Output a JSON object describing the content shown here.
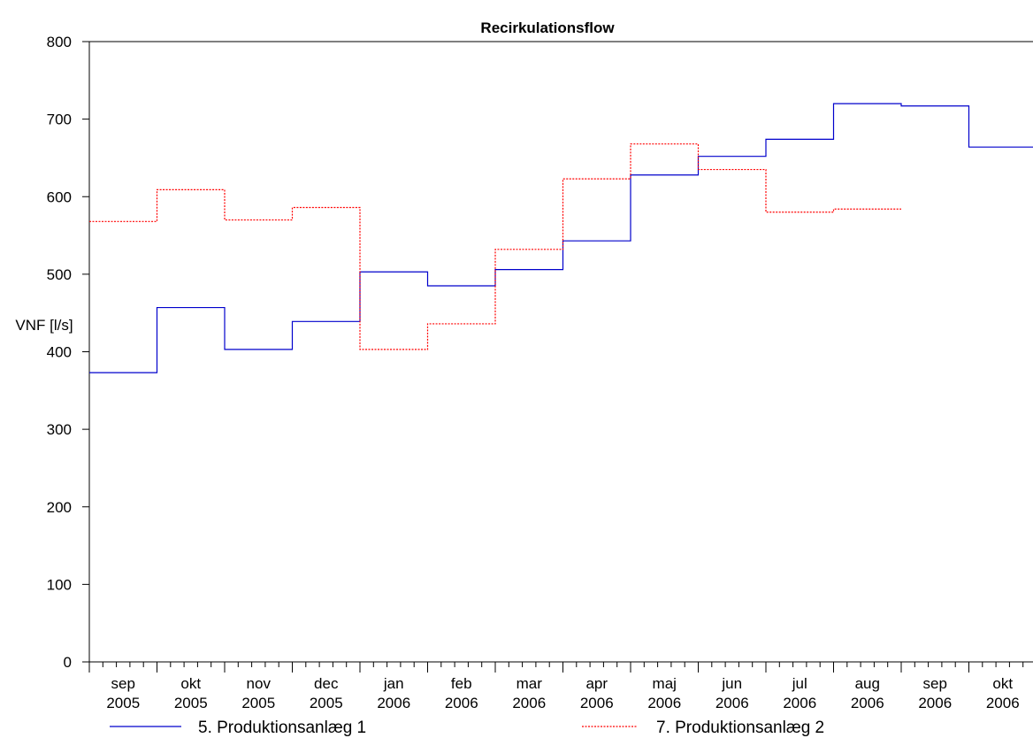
{
  "chart_data": {
    "type": "line",
    "step": true,
    "title": "Recirkulationsflow",
    "ylabel": "VNF [l/s]",
    "xlabel": "",
    "ylim": [
      0,
      800
    ],
    "yticks": [
      0,
      100,
      200,
      300,
      400,
      500,
      600,
      700,
      800
    ],
    "categories": [
      {
        "month": "sep",
        "year": "2005"
      },
      {
        "month": "okt",
        "year": "2005"
      },
      {
        "month": "nov",
        "year": "2005"
      },
      {
        "month": "dec",
        "year": "2005"
      },
      {
        "month": "jan",
        "year": "2006"
      },
      {
        "month": "feb",
        "year": "2006"
      },
      {
        "month": "mar",
        "year": "2006"
      },
      {
        "month": "apr",
        "year": "2006"
      },
      {
        "month": "maj",
        "year": "2006"
      },
      {
        "month": "jun",
        "year": "2006"
      },
      {
        "month": "jul",
        "year": "2006"
      },
      {
        "month": "aug",
        "year": "2006"
      },
      {
        "month": "sep",
        "year": "2006"
      },
      {
        "month": "okt",
        "year": "2006"
      }
    ],
    "grid": false,
    "legend_position": "bottom",
    "series": [
      {
        "name": "5. Produktionsanlæg 1",
        "color": "#0000cc",
        "style": "solid",
        "values": [
          373,
          457,
          403,
          439,
          503,
          485,
          506,
          543,
          628,
          652,
          674,
          720,
          717,
          664
        ]
      },
      {
        "name": "7. Produktionsanlæg 2",
        "color": "#ff0000",
        "style": "dotted",
        "values": [
          568,
          609,
          570,
          586,
          403,
          436,
          532,
          623,
          668,
          635,
          580,
          584,
          null,
          null
        ]
      }
    ]
  }
}
